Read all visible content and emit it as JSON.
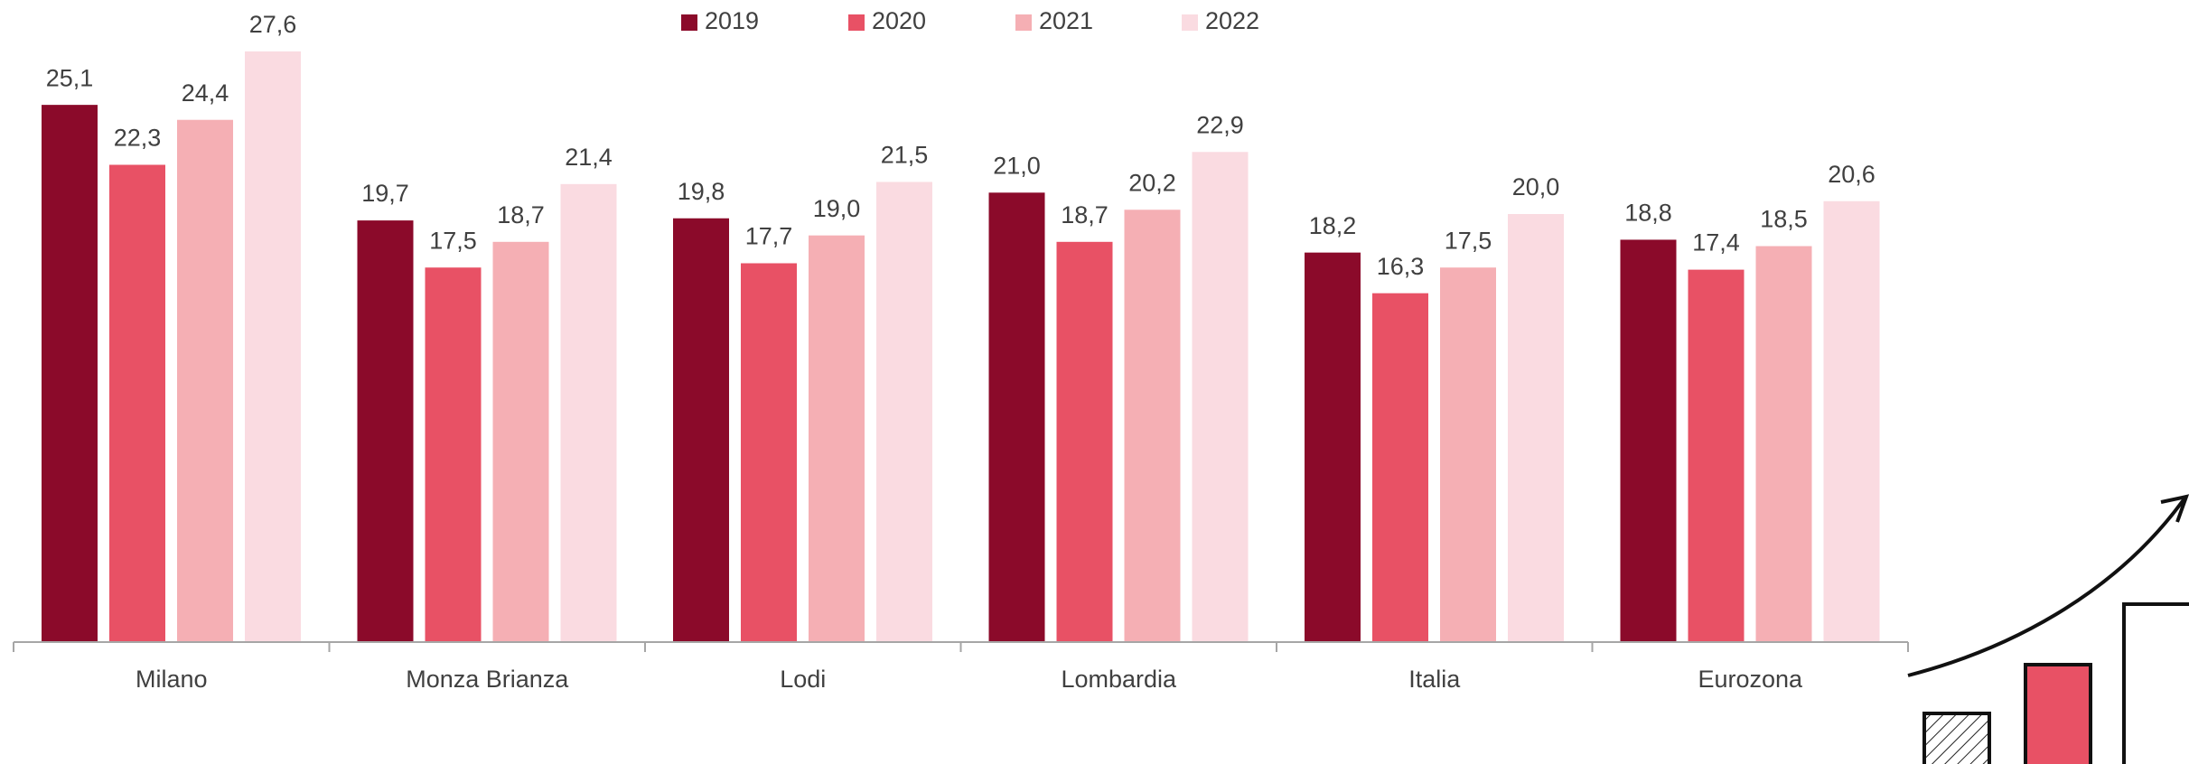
{
  "chart_data": {
    "type": "bar",
    "categories": [
      "Milano",
      "Monza Brianza",
      "Lodi",
      "Lombardia",
      "Italia",
      "Eurozona"
    ],
    "series": [
      {
        "name": "2019",
        "color": "#8b0a2a",
        "values": [
          25.1,
          19.7,
          19.8,
          21.0,
          18.2,
          18.8
        ],
        "value_labels": [
          "25,1",
          "19,7",
          "19,8",
          "21,0",
          "18,2",
          "18,8"
        ]
      },
      {
        "name": "2020",
        "color": "#e85165",
        "values": [
          22.3,
          17.5,
          17.7,
          18.7,
          16.3,
          17.4
        ],
        "value_labels": [
          "22,3",
          "17,5",
          "17,7",
          "18,7",
          "16,3",
          "17,4"
        ]
      },
      {
        "name": "2021",
        "color": "#f5afb4",
        "values": [
          24.4,
          18.7,
          19.0,
          20.2,
          17.5,
          18.5
        ],
        "value_labels": [
          "24,4",
          "18,7",
          "19,0",
          "20,2",
          "17,5",
          "18,5"
        ]
      },
      {
        "name": "2022",
        "color": "#fadbe1",
        "values": [
          27.6,
          21.4,
          21.5,
          22.9,
          20.0,
          20.6
        ],
        "value_labels": [
          "27,6",
          "21,4",
          "21,5",
          "22,9",
          "20,0",
          "20,6"
        ]
      }
    ],
    "ylim": [
      0,
      30
    ],
    "legend": "top"
  }
}
